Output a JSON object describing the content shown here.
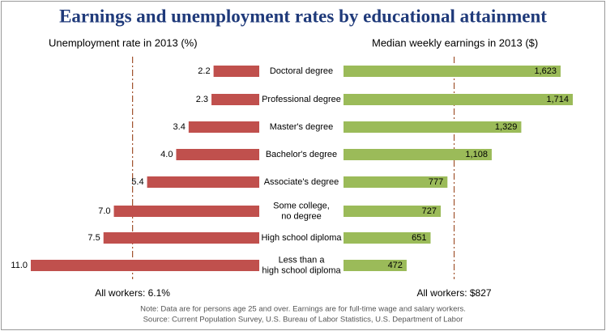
{
  "chart_data": {
    "type": "butterfly",
    "title": "Earnings and unemployment rates by educational attainment",
    "categories": [
      "Doctoral degree",
      "Professional degree",
      "Master's degree",
      "Bachelor's degree",
      "Associate's degree",
      "Some college,\nno degree",
      "High school diploma",
      "Less than a\nhigh school diploma"
    ],
    "series": [
      {
        "name": "Unemployment rate in 2013 (%)",
        "color": "#c0504d",
        "direction": "left",
        "values": [
          2.2,
          2.3,
          3.4,
          4.0,
          5.4,
          7.0,
          7.5,
          11.0
        ],
        "value_labels": [
          "2.2",
          "2.3",
          "3.4",
          "4.0",
          "5.4",
          "7.0",
          "7.5",
          "11.0"
        ],
        "xlim": [
          0,
          11
        ],
        "reference": {
          "value": 6.1,
          "label": "All workers: 6.1%"
        }
      },
      {
        "name": "Median weekly earnings in 2013 ($)",
        "color": "#9bbb59",
        "direction": "right",
        "values": [
          1623,
          1714,
          1329,
          1108,
          777,
          727,
          651,
          472
        ],
        "value_labels": [
          "1,623",
          "1,714",
          "1,329",
          "1,108",
          "777",
          "727",
          "651",
          "472"
        ],
        "xlim": [
          0,
          1714
        ],
        "reference": {
          "value": 827,
          "label": "All workers: $827"
        }
      }
    ],
    "notes": [
      "Note: Data are for persons age 25 and over. Earnings are for full-time wage and salary workers.",
      "Source: Current Population Survey, U.S. Bureau of Labor Statistics, U.S. Department of Labor"
    ]
  }
}
